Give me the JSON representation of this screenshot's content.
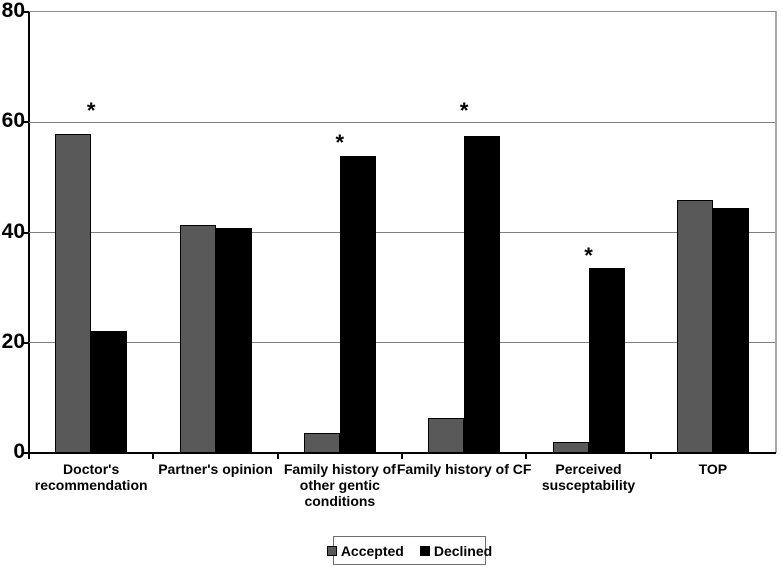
{
  "figure": {
    "background": "#ffffff"
  },
  "chart_data": {
    "type": "bar",
    "title": "",
    "xlabel": "",
    "ylabel": "",
    "categories": [
      "Doctor's recommendation",
      "Partner's opinion",
      "Family history of other gentic conditions",
      "Family history of CF",
      "Perceived susceptability",
      "TOP"
    ],
    "tick_labels": [
      "Doctor's\nrecommendation",
      "Partner's opinion",
      "Family history of\nother gentic\nconditions",
      "Family history of CF",
      "Perceived\nsusceptability",
      "TOP"
    ],
    "series": [
      {
        "name": "Accepted",
        "color": "#595959",
        "values": [
          57.8,
          41.3,
          3.6,
          6.3,
          2.0,
          45.9
        ]
      },
      {
        "name": "Declined",
        "color": "#000000",
        "values": [
          22.1,
          40.8,
          53.9,
          57.5,
          33.6,
          44.5
        ]
      }
    ],
    "annotations": [
      {
        "category_index": 0,
        "symbol": "*",
        "y": 62.6
      },
      {
        "category_index": 2,
        "symbol": "*",
        "y": 56.8
      },
      {
        "category_index": 3,
        "symbol": "*",
        "y": 62.6
      },
      {
        "category_index": 4,
        "symbol": "*",
        "y": 36.2
      }
    ],
    "ylim": [
      0,
      80
    ],
    "yticks": [
      0,
      20,
      40,
      60,
      80
    ],
    "grid": true,
    "legend_position": "bottom",
    "legend": [
      "Accepted",
      "Declined"
    ]
  },
  "colors": {
    "gridline": "#808080",
    "axis": "#000000",
    "plot_border_top": "#8c8c8c",
    "plot_border_right": "#a8a8a8",
    "accepted_bar": "#595959",
    "declined_bar": "#000000"
  }
}
